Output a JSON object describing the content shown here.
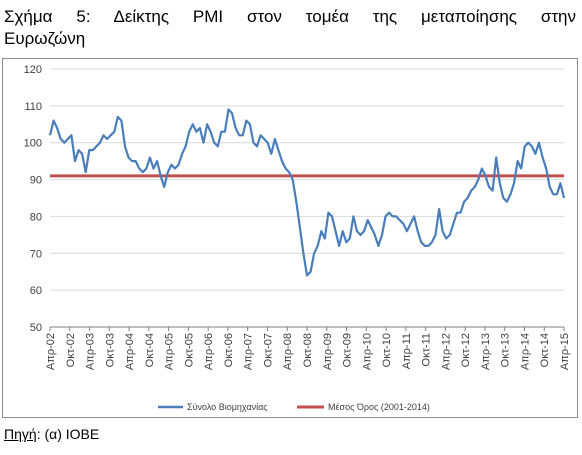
{
  "title_line1": "Σχήμα 5: Δείκτης PMI στον τομέα της μεταποίησης στην",
  "title_line2": "Ευρωζώνη",
  "source": {
    "label": "Πηγή",
    "text": ": (α) ΙΟΒΕ"
  },
  "colors": {
    "pmi": "#4a7ebb",
    "mean": "#c0504d",
    "grid": "#d9d9d9",
    "axis": "#7f7f7f"
  },
  "chart_data": {
    "type": "line",
    "ylim": [
      50,
      120
    ],
    "yticks": [
      50,
      60,
      70,
      80,
      90,
      100,
      110,
      120
    ],
    "xtick_labels": [
      "Απρ-02",
      "Οκτ-02",
      "Απρ-03",
      "Οκτ-03",
      "Απρ-04",
      "Οκτ-04",
      "Απρ-05",
      "Οκτ-05",
      "Απρ-06",
      "Οκτ-06",
      "Απρ-07",
      "Οκτ-07",
      "Απρ-08",
      "Οκτ-08",
      "Απρ-09",
      "Οκτ-09",
      "Απρ-10",
      "Οκτ-10",
      "Απρ-11",
      "Οκτ-11",
      "Απρ-12",
      "Οκτ-12",
      "Απρ-13",
      "Οκτ-13",
      "Απρ-14",
      "Οκτ-14",
      "Απρ-15"
    ],
    "grid": true,
    "legend_position": "bottom",
    "series": [
      {
        "name": "Σύνολο Βιομηχανίας",
        "color": "#4a7ebb",
        "values": [
          102,
          106,
          104,
          101,
          100,
          101,
          102,
          95,
          98,
          97,
          92,
          98,
          98,
          99,
          100,
          102,
          101,
          102,
          103,
          107,
          106,
          99,
          96,
          95,
          95,
          93,
          92,
          93,
          96,
          93,
          95,
          91,
          88,
          92,
          94,
          93,
          94,
          97,
          99,
          103,
          105,
          103,
          104,
          100,
          105,
          103,
          100,
          99,
          103,
          103,
          109,
          108,
          104,
          102,
          102,
          106,
          105,
          100,
          99,
          102,
          101,
          100,
          97,
          101,
          98,
          95,
          93,
          92,
          90,
          84,
          77,
          70,
          64,
          65,
          70,
          72,
          76,
          74,
          81,
          80,
          76,
          72,
          76,
          73,
          74,
          80,
          76,
          75,
          76,
          79,
          77,
          75,
          72,
          75,
          80,
          81,
          80,
          80,
          79,
          78,
          76,
          78,
          80,
          76,
          73,
          72,
          72,
          73,
          75,
          82,
          76,
          74,
          75,
          78,
          81,
          81,
          84,
          85,
          87,
          88,
          90,
          93,
          91,
          88,
          87,
          96,
          89,
          85,
          84,
          86,
          89,
          95,
          93,
          99,
          100,
          99,
          97,
          100,
          96,
          93,
          88,
          86,
          86,
          89,
          85
        ]
      },
      {
        "name": "Μέσος Όρος (2001-2014)",
        "color": "#c0504d",
        "values": [
          91
        ]
      }
    ]
  }
}
